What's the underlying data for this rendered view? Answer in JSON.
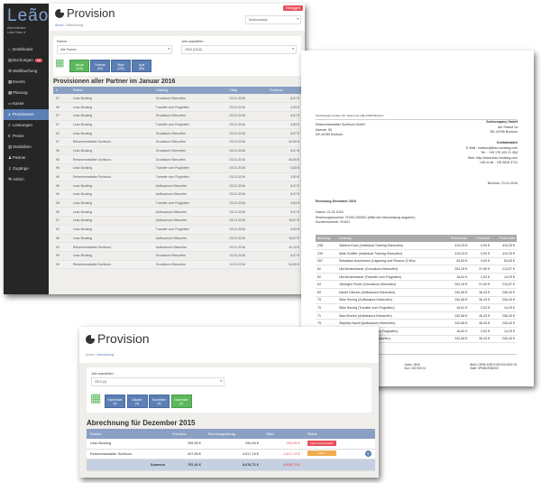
{
  "colors": {
    "accent": "#5b7eb4",
    "success": "#5cb85c",
    "danger": "#e8505b",
    "warning": "#f0ad4e",
    "sidebar": "#262626"
  },
  "screen1": {
    "logo": "Leão",
    "role": "Administrator",
    "user": "Leão Team ▾",
    "nav": [
      {
        "label": "Dashboard",
        "icon": "home-icon"
      },
      {
        "label": "Buchungen",
        "icon": "book-icon",
        "badge": "16"
      },
      {
        "label": "Wahlbuchung",
        "icon": "gear-icon"
      },
      {
        "label": "Events",
        "icon": "calendar-icon"
      },
      {
        "label": "Planung",
        "icon": "calendar-icon"
      },
      {
        "label": "Kasse",
        "icon": "cash-icon"
      },
      {
        "label": "Provisionen",
        "icon": "pie-icon",
        "active": true
      },
      {
        "label": "Leistungen",
        "icon": "list-icon"
      },
      {
        "label": "Preise",
        "icon": "euro-icon"
      },
      {
        "label": "Statistiken",
        "icon": "chart-icon"
      },
      {
        "label": "Partner",
        "icon": "user-icon"
      },
      {
        "label": "Zugänge",
        "icon": "key-icon"
      },
      {
        "label": "Admin",
        "icon": "wrench-icon"
      }
    ],
    "title": "Provision",
    "breadcrumb": [
      "Archiv",
      "Abrechnung"
    ],
    "logout": "Einloggen",
    "company_select": "Surfcompany",
    "partner_label": "Partner",
    "partner_value": "Alle Partner",
    "year_label": "Jahr auswählen",
    "year_value": "2016 (2016)",
    "months": [
      {
        "name": "Januar",
        "count": "(100)",
        "active": true
      },
      {
        "name": "Februar",
        "count": "(60)"
      },
      {
        "name": "März",
        "count": "(100)"
      },
      {
        "name": "April",
        "count": "(60)"
      }
    ],
    "heading": "Provisionen aller Partner im Januar 2016",
    "columns": [
      "#",
      "Partner",
      "Leistung",
      "Fällig",
      "Provision"
    ],
    "rows": [
      [
        "97",
        "Leao Booking",
        "Grundkurs Kitesurfen",
        "03.01.2016",
        "6,67 €"
      ],
      [
        "96",
        "Leao Booking",
        "Transfer vom Flughafen",
        "03.01.2016",
        "0,83 €"
      ],
      [
        "97",
        "Leao Booking",
        "Grundkurs Kitesurfen",
        "03.01.2016",
        "6,67 €"
      ],
      [
        "97",
        "Leao Booking",
        "Transfer vom Flughafen",
        "03.01.2016",
        "0,83 €"
      ],
      [
        "92",
        "Leao Booking",
        "Grundkurs Kitesurfen",
        "03.01.2016",
        "6,67 €"
      ],
      [
        "97",
        "Reiseveranstalter Surftours",
        "Grundkurs Kitesurfen",
        "03.01.2016",
        "64,89 €"
      ],
      [
        "96",
        "Leao Booking",
        "Grundkurs Kitesurfen",
        "03.01.2016",
        "6,67 €"
      ],
      [
        "96",
        "Reiseveranstalter Surftours",
        "Grundkurs Kitesurfen",
        "03.01.2016",
        "64,89 €"
      ],
      [
        "96",
        "Leao Booking",
        "Transfer vom Flughafen",
        "03.01.2016",
        "0,83 €"
      ],
      [
        "96",
        "Reiseveranstalter Surftours",
        "Transfer vom Flughafen",
        "03.01.2016",
        "3,83 €"
      ],
      [
        "96",
        "Leao Booking",
        "Aufbaukurs Kitesurfen",
        "03.01.2016",
        "6,67 €"
      ],
      [
        "95",
        "Leao Booking",
        "Aufbaukurs Kitesurfen",
        "03.01.2016",
        "6,67 €"
      ],
      [
        "95",
        "Leao Booking",
        "Transfer vom Flughafen",
        "03.01.2016",
        "0,83 €"
      ],
      [
        "95",
        "Leao Booking",
        "Aufbaukurs Kitesurfen",
        "03.01.2016",
        "6,67 €"
      ],
      [
        "97",
        "Leao Booking",
        "Aufbaukurs Kitesurfen",
        "04.01.2016",
        "16,67 €"
      ],
      [
        "92",
        "Leao Booking",
        "Transfer vom Flughafen",
        "03.01.2016",
        "0,83 €"
      ],
      [
        "98",
        "Leao Booking",
        "Aufbaukurs Kitesurfen",
        "03.01.2016",
        "16,67 €"
      ],
      [
        "94",
        "Reiseveranstalter Surftours",
        "Aufbaukurs Kitesurfen",
        "03.01.2016",
        "43,33 €"
      ],
      [
        "99",
        "Leao Booking",
        "Grundkurs Kitesurfen",
        "10.01.2016",
        "6,67 €"
      ],
      [
        "99",
        "Reiseveranstalter Surftours",
        "Grundkurs Kitesurfen",
        "10.01.2016",
        "64,89 €"
      ]
    ]
  },
  "invoice": {
    "sender_line": "Surfcompany GmbH | Am Strand 1a | DE-44789 Bochum",
    "recipient": [
      "Reiseveranstalter Surftours GmbH",
      "Asenstr. 55",
      "DE-44789 Bochum"
    ],
    "company": [
      "Surfcompany GmbH",
      "Am Strand 1a",
      "DE-44789 Bochum"
    ],
    "contact_title": "Kontaktdaten",
    "contact": [
      "E-Mail : markus@leao-booking.com",
      "Tel. : +49 176 103 21 454",
      "Web: http://www.leao-booking.com",
      "USt-Id-Nr. : DE 0815 4711"
    ],
    "place_date": "Bochum, 21.01.2016",
    "subject": "Rechnung Dezember 2015",
    "meta": [
      "Datum: 21.01.2016",
      "Rechnungsnummer: R1001-000001 (Bitte bei Überweisung angeben)",
      "Kundennummer: R1001"
    ],
    "columns": [
      "Buchung",
      "Leistung",
      "Preis brutto",
      "Provision",
      "Preis netto"
    ],
    "rows": [
      [
        "238",
        "Sabrina Koch (Individual Training Kitesurfen)",
        "419,33 €",
        "0,00 €",
        "419,33 €"
      ],
      [
        "239",
        "Maik Schiffer (Individual Training Kitesurfen)",
        "419,33 €",
        "0,00 €",
        "419,33 €"
      ],
      [
        "257",
        "Sebastian Ackermann (Lagerung und Rescue (3 Woc",
        "83,83 €",
        "0,00 €",
        "83,83 €"
      ],
      [
        "62",
        "Uta Beckenbauer (Grundkurs Kitesurfen)",
        "251,26 €",
        "37,69 €",
        "213,57 €"
      ],
      [
        "62",
        "Uta Beckenbauer (Transfer vom Flughafen)",
        "16,81 €",
        "2,52 €",
        "14,29 €"
      ],
      [
        "64",
        "Jähregen Fisher (Grundkurs Kitesurfen)",
        "251,26 €",
        "37,69 €",
        "213,57 €"
      ],
      [
        "69",
        "Daniel Dietrich (Aufbaukurs Kitesurfen)",
        "242,86 €",
        "36,43 €",
        "206,43 €"
      ],
      [
        "70",
        "Silke Hennig (Aufbaukurs Kitesurfen)",
        "242,86 €",
        "36,43 €",
        "206,43 €"
      ],
      [
        "70",
        "Silke Hennig (Transfer vom Flughafen)",
        "16,81 €",
        "2,52 €",
        "14,29 €"
      ],
      [
        "71",
        "Sara Boehm (Aufbaukurs Kitesurfen)",
        "242,86 €",
        "36,43 €",
        "206,43 €"
      ],
      [
        "75",
        "Stephan Nacht (Aufbaukurs Kitesurfen)",
        "242,86 €",
        "36,43 €",
        "206,43 €"
      ],
      [
        "75",
        "Stephan Nacht (Transfer vom Flughafen)",
        "16,81 €",
        "2,52 €",
        "14,29 €"
      ],
      [
        "76",
        "Jens Zweig (Aufbaukurs Kitesurfen)",
        "242,86 €",
        "36,43 €",
        "206,43 €"
      ]
    ],
    "bank_title": "Bankverbindung",
    "bank": [
      "Bank: Sparkasse Bochum",
      "Kontoinhaber: Surfcompany GmbH"
    ],
    "bank2": [
      "Konto: 0815",
      "BLZ: 430 500 01"
    ],
    "bank3": [
      "IBAN: DE95 4305 0126 000 0000 15",
      "Swift: SPKBDE3BXXX"
    ]
  },
  "screen3": {
    "title": "Provision",
    "breadcrumb": [
      "Archiv",
      "Abrechnung"
    ],
    "year_label": "Jahr auswählen",
    "year_value": "2015 (4)",
    "months": [
      {
        "name": "September",
        "count": "(4)"
      },
      {
        "name": "Oktober",
        "count": "(4)"
      },
      {
        "name": "November",
        "count": "(4)"
      },
      {
        "name": "Dezember",
        "count": "(4)",
        "active": true
      }
    ],
    "heading": "Abrechnung für Dezember 2015",
    "columns": [
      "Partner",
      "Provision",
      "Rechnungsbetrag",
      "Offen",
      "Status"
    ],
    "rows": [
      {
        "partner": "Leao Booking",
        "provision": "259,56 €",
        "amount": "259,56 €",
        "open": "-259,56 €",
        "status": "Noch nicht bezahlt",
        "status_color": "#e8505b"
      },
      {
        "partner": "Reiseveranstalter Surftours",
        "provision": "497,85 €",
        "amount": "4.817,15 €",
        "open": "-4.817,15 €",
        "status": "Offen",
        "status_color": "#f0ad4e"
      }
    ],
    "sum_label": "Summen",
    "sum_provision": "757,41 €",
    "sum_amount": "5.076,71 €",
    "sum_open": "-5.076,71 €"
  }
}
